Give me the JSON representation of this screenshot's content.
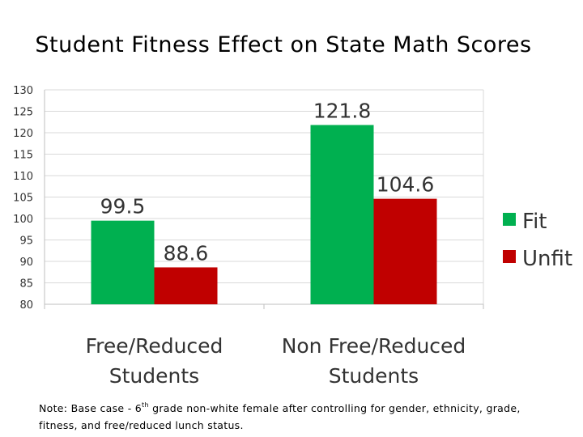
{
  "chart_data": {
    "type": "bar",
    "title": "Student Fitness Effect on State Math Scores",
    "categories": [
      "Free/Reduced Students",
      "Non Free/Reduced Students"
    ],
    "category_lines": [
      [
        "Free/Reduced",
        "Students"
      ],
      [
        "Non Free/Reduced",
        "Students"
      ]
    ],
    "series": [
      {
        "name": "Fit",
        "values": [
          99.5,
          121.8
        ],
        "color": "#00b050"
      },
      {
        "name": "Unfit",
        "values": [
          88.6,
          104.6
        ],
        "color": "#c00000"
      }
    ],
    "data_labels": [
      [
        "99.5",
        "121.8"
      ],
      [
        "88.6",
        "104.6"
      ]
    ],
    "ylim": [
      80,
      130
    ],
    "yticks": [
      "80",
      "85",
      "90",
      "95",
      "100",
      "105",
      "110",
      "115",
      "120",
      "125",
      "130"
    ],
    "xlabel": "",
    "ylabel": "",
    "grid": true,
    "legend_position": "right"
  },
  "note": {
    "prefix": "Note: Base case - 6",
    "superscript": "th",
    "suffix": " grade non-white female after controlling for gender, ethnicity, grade, fitness, and free/reduced lunch status."
  }
}
